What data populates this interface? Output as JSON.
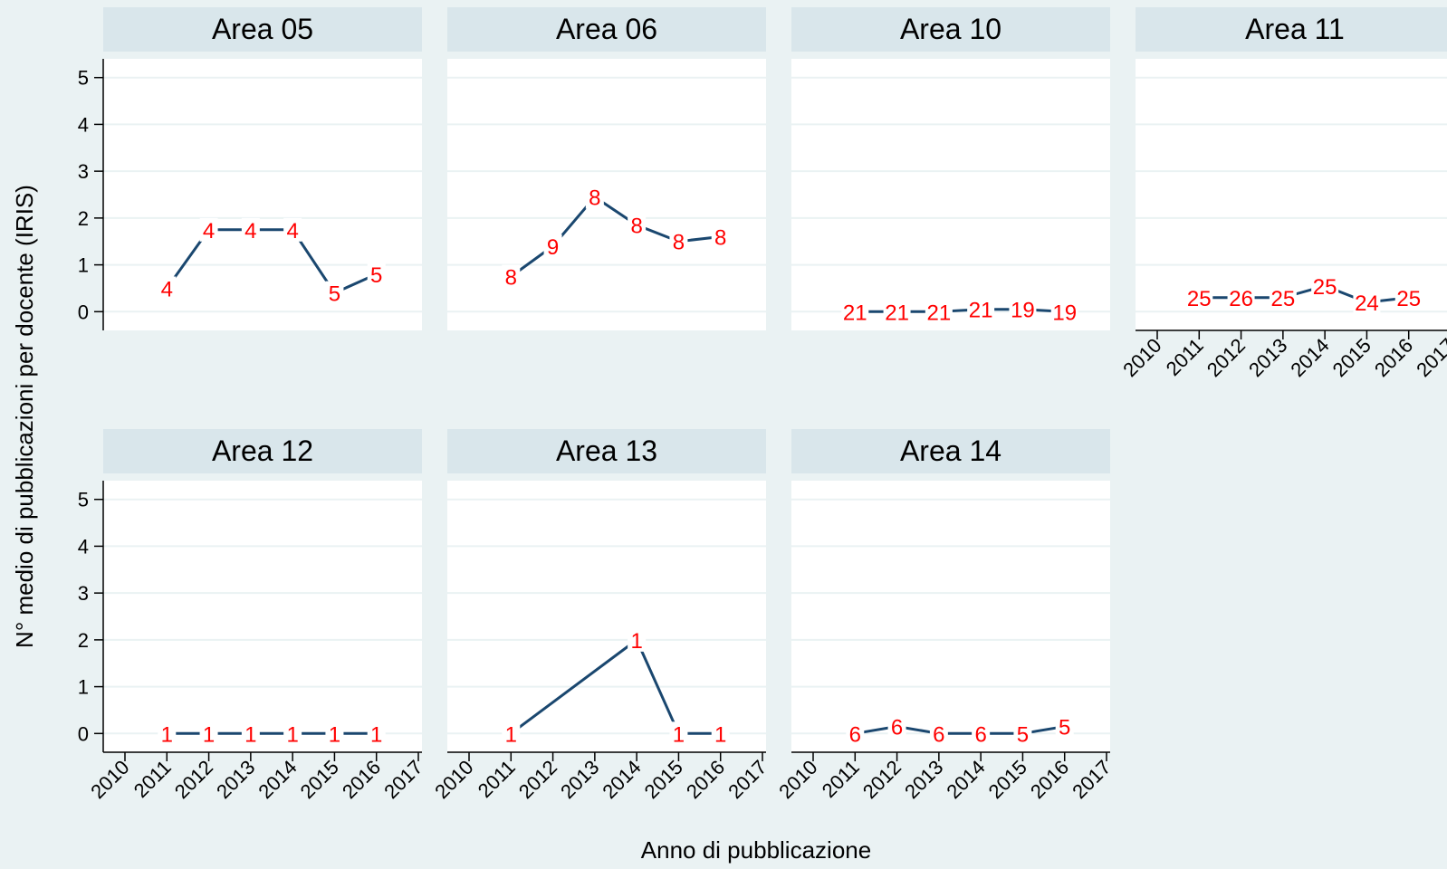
{
  "chart_data": {
    "type": "line",
    "ylabel": "N° medio di pubblicazioni per docente (IRIS)",
    "xlabel": "Anno di pubblicazione",
    "x_ticks": [
      "2010",
      "2011",
      "2012",
      "2013",
      "2014",
      "2015",
      "2016",
      "2017"
    ],
    "y_ticks": [
      "0",
      "1",
      "2",
      "3",
      "4",
      "5"
    ],
    "xlim": [
      2010,
      2017
    ],
    "ylim": [
      -0.4,
      5.4
    ],
    "grid": true,
    "colors": {
      "line": "#1a476f",
      "label": "#ff0000",
      "header": "#d9e6eb",
      "background": "#eaf2f3",
      "panel": "#ffffff",
      "grid": "#eaf2f3"
    },
    "panels": [
      {
        "title": "Area 05",
        "points": [
          {
            "x": 2011,
            "y": 0.5,
            "label": "4"
          },
          {
            "x": 2012,
            "y": 1.75,
            "label": "4"
          },
          {
            "x": 2013,
            "y": 1.75,
            "label": "4"
          },
          {
            "x": 2014,
            "y": 1.75,
            "label": "4"
          },
          {
            "x": 2015,
            "y": 0.4,
            "label": "5"
          },
          {
            "x": 2016,
            "y": 0.8,
            "label": "5"
          }
        ]
      },
      {
        "title": "Area 06",
        "points": [
          {
            "x": 2011,
            "y": 0.75,
            "label": "8"
          },
          {
            "x": 2012,
            "y": 1.4,
            "label": "9"
          },
          {
            "x": 2013,
            "y": 2.45,
            "label": "8"
          },
          {
            "x": 2014,
            "y": 1.85,
            "label": "8"
          },
          {
            "x": 2015,
            "y": 1.5,
            "label": "8"
          },
          {
            "x": 2016,
            "y": 1.6,
            "label": "8"
          }
        ]
      },
      {
        "title": "Area 10",
        "points": [
          {
            "x": 2011,
            "y": 0.0,
            "label": "21"
          },
          {
            "x": 2012,
            "y": 0.0,
            "label": "21"
          },
          {
            "x": 2013,
            "y": 0.0,
            "label": "21"
          },
          {
            "x": 2014,
            "y": 0.05,
            "label": "21"
          },
          {
            "x": 2015,
            "y": 0.05,
            "label": "19"
          },
          {
            "x": 2016,
            "y": 0.0,
            "label": "19"
          }
        ]
      },
      {
        "title": "Area 11",
        "points": [
          {
            "x": 2011,
            "y": 0.3,
            "label": "25"
          },
          {
            "x": 2012,
            "y": 0.3,
            "label": "26"
          },
          {
            "x": 2013,
            "y": 0.3,
            "label": "25"
          },
          {
            "x": 2014,
            "y": 0.55,
            "label": "25"
          },
          {
            "x": 2015,
            "y": 0.2,
            "label": "24"
          },
          {
            "x": 2016,
            "y": 0.3,
            "label": "25"
          }
        ]
      },
      {
        "title": "Area 12",
        "points": [
          {
            "x": 2011,
            "y": 0.0,
            "label": "1"
          },
          {
            "x": 2012,
            "y": 0.0,
            "label": "1"
          },
          {
            "x": 2013,
            "y": 0.0,
            "label": "1"
          },
          {
            "x": 2014,
            "y": 0.0,
            "label": "1"
          },
          {
            "x": 2015,
            "y": 0.0,
            "label": "1"
          },
          {
            "x": 2016,
            "y": 0.0,
            "label": "1"
          }
        ]
      },
      {
        "title": "Area 13",
        "points": [
          {
            "x": 2011,
            "y": 0.0,
            "label": "1"
          },
          {
            "x": 2014,
            "y": 2.0,
            "label": "1"
          },
          {
            "x": 2015,
            "y": 0.0,
            "label": "1"
          },
          {
            "x": 2016,
            "y": 0.0,
            "label": "1"
          }
        ]
      },
      {
        "title": "Area 14",
        "points": [
          {
            "x": 2011,
            "y": 0.0,
            "label": "6"
          },
          {
            "x": 2012,
            "y": 0.15,
            "label": "6"
          },
          {
            "x": 2013,
            "y": 0.0,
            "label": "6"
          },
          {
            "x": 2014,
            "y": 0.0,
            "label": "6"
          },
          {
            "x": 2015,
            "y": 0.0,
            "label": "5"
          },
          {
            "x": 2016,
            "y": 0.15,
            "label": "5"
          }
        ]
      }
    ]
  }
}
